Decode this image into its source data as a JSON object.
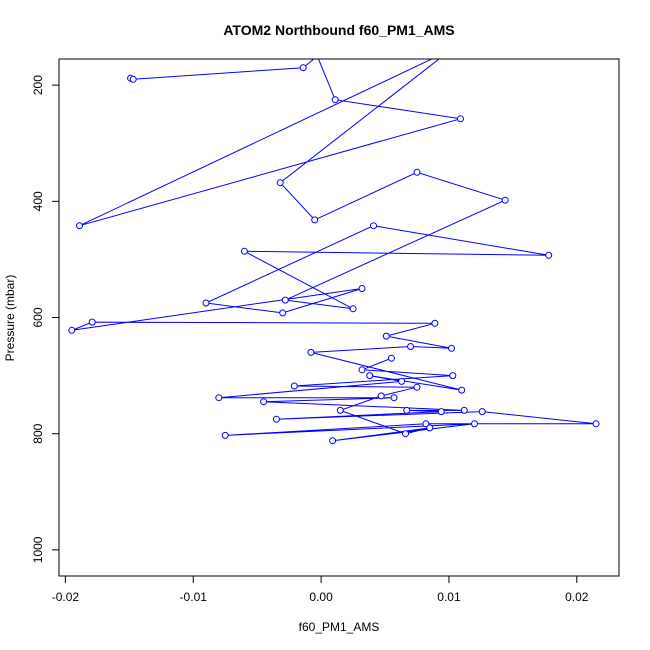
{
  "chart_data": {
    "type": "line",
    "title": "ATOM2 Northbound f60_PM1_AMS",
    "xlabel": "f60_PM1_AMS",
    "ylabel": "Pressure (mbar)",
    "xlim": [
      -0.0205,
      0.0233
    ],
    "ylim": [
      1045,
      155
    ],
    "y_reversed": true,
    "x_ticks": [
      -0.02,
      -0.01,
      0.0,
      0.01,
      0.02
    ],
    "x_tick_labels": [
      "-0.02",
      "-0.01",
      "0.00",
      "0.01",
      "0.02"
    ],
    "y_ticks": [
      200,
      400,
      600,
      800,
      1000
    ],
    "y_tick_labels": [
      "200",
      "400",
      "600",
      "800",
      "1000"
    ],
    "series": [
      {
        "color": "#0000ff",
        "marker": "open-circle",
        "x": [
          -0.0149,
          -0.0147,
          -0.0014,
          -0.0003,
          0.0011,
          0.0109,
          -0.0189,
          0.0101,
          -0.0032,
          -0.0005,
          0.0075,
          0.0144,
          -0.0028,
          0.0025,
          -0.006,
          0.0178,
          0.0041,
          -0.009,
          -0.003,
          0.0032,
          -0.0195,
          -0.0179,
          0.0089,
          0.0051,
          0.0102,
          0.007,
          -0.0008,
          0.011,
          0.0038,
          0.0063,
          -0.008,
          0.0057,
          -0.0045,
          0.0112,
          0.0067,
          0.0094,
          -0.0035,
          0.0126,
          0.0215,
          0.0082,
          -0.0075,
          0.012,
          0.0009,
          0.0085,
          0.0066,
          0.0015,
          0.0047,
          0.0075,
          -0.0021,
          0.0103,
          0.0032,
          0.0055
        ],
        "y": [
          188,
          190,
          170,
          150,
          225,
          258,
          442,
          140,
          368,
          432,
          350,
          398,
          570,
          585,
          486,
          493,
          442,
          575,
          592,
          550,
          622,
          608,
          610,
          632,
          653,
          650,
          660,
          725,
          700,
          710,
          738,
          738,
          745,
          760,
          760,
          762,
          775,
          762,
          783,
          783,
          803,
          783,
          812,
          790,
          800,
          760,
          735,
          720,
          718,
          700,
          690,
          670
        ]
      }
    ]
  }
}
